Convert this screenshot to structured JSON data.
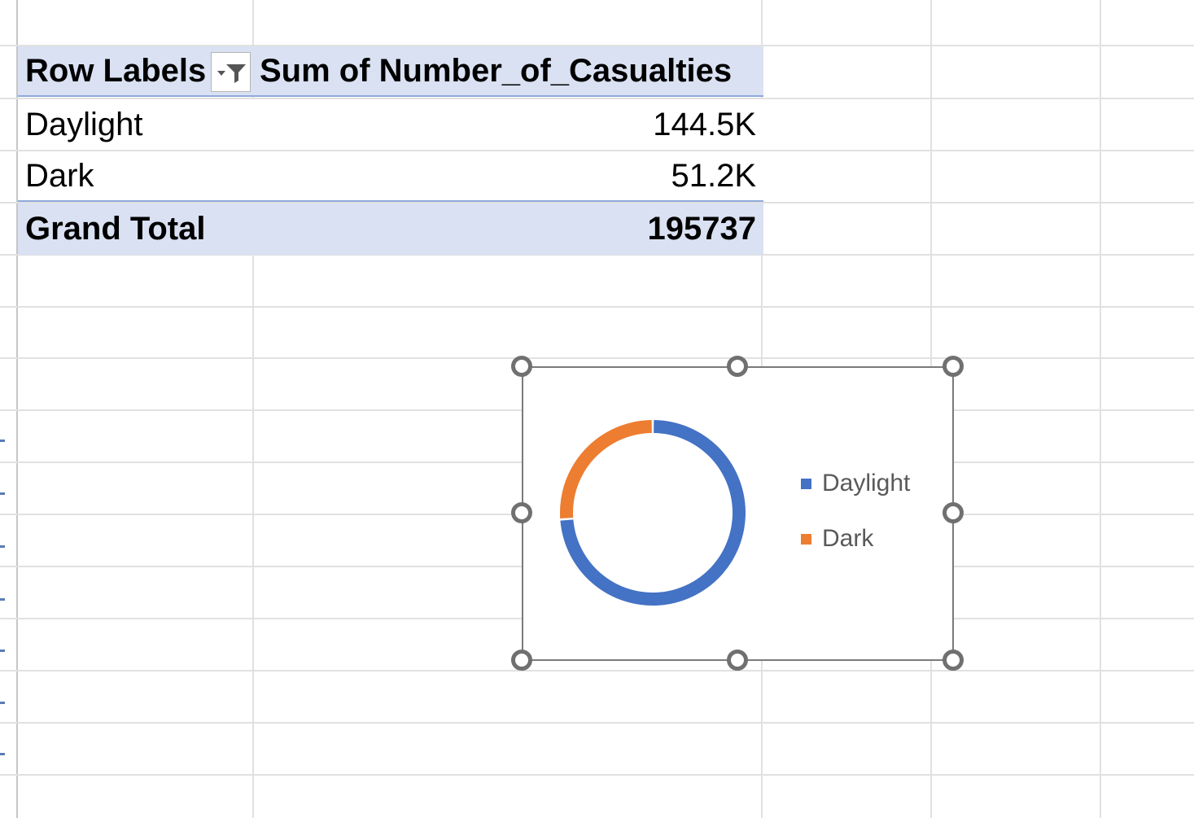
{
  "pivot": {
    "header": {
      "row_labels": "Row Labels",
      "value_field": "Sum of Number_of_Casualties"
    },
    "rows": [
      {
        "label": "Daylight",
        "value": "144.5K"
      },
      {
        "label": "Dark",
        "value": "51.2K"
      }
    ],
    "total": {
      "label": "Grand Total",
      "value": "195737"
    }
  },
  "chart_data": {
    "type": "pie",
    "style": "doughnut",
    "title": "",
    "categories": [
      "Daylight",
      "Dark"
    ],
    "values": [
      144500,
      51200
    ],
    "colors": [
      "#4472c4",
      "#ed7d31"
    ],
    "legend": "right"
  },
  "icons": {
    "filter": "filter-dropdown-icon",
    "handles": "resize-handle"
  },
  "colors": {
    "pivot_header_bg": "#d9e1f2",
    "pivot_border": "#8ea9db",
    "gridline": "#e1e1e1"
  }
}
